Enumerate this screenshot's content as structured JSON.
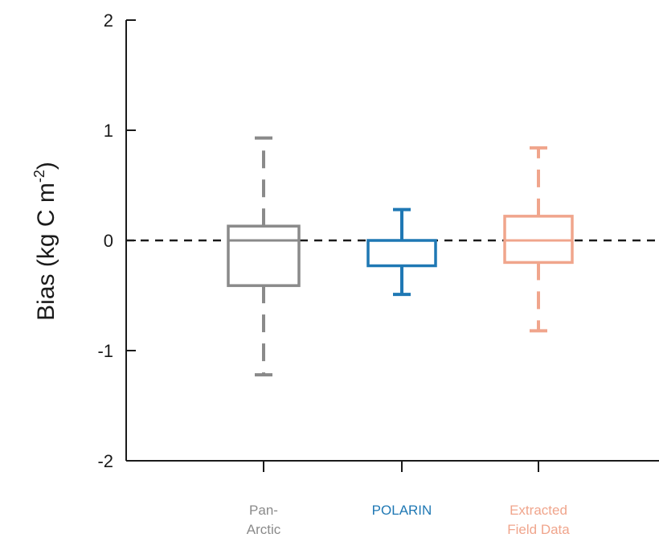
{
  "chart_data": {
    "type": "box",
    "ylabel": "Bias (kg C m",
    "ylabel_exponent": "-2",
    "ylabel_suffix": ")",
    "ylim": [
      -2,
      2
    ],
    "yticks": [
      2,
      1,
      0,
      -1,
      -2
    ],
    "ytick_labels": [
      "2",
      "1",
      "0",
      "-1",
      "-2"
    ],
    "reference_line": {
      "y": 0,
      "style": "dashed"
    },
    "boxes": [
      {
        "label_lines": [
          "Pan-",
          "Arctic"
        ],
        "color": "#8a8a8a",
        "whisker_style": "dashed",
        "whisker_low": -1.22,
        "q1": -0.41,
        "median": 0.0,
        "q3": 0.13,
        "whisker_high": 0.93
      },
      {
        "label_lines": [
          "POLARIN"
        ],
        "color": "#1f78b4",
        "whisker_style": "solid",
        "whisker_low": -0.49,
        "q1": -0.23,
        "median": 0.0,
        "q3": 0.0,
        "whisker_high": 0.28
      },
      {
        "label_lines": [
          "Extracted",
          "Field Data"
        ],
        "color": "#f0a58c",
        "whisker_style": "dashed",
        "whisker_low": -0.82,
        "q1": -0.2,
        "median": 0.0,
        "q3": 0.22,
        "whisker_high": 0.84
      }
    ]
  }
}
